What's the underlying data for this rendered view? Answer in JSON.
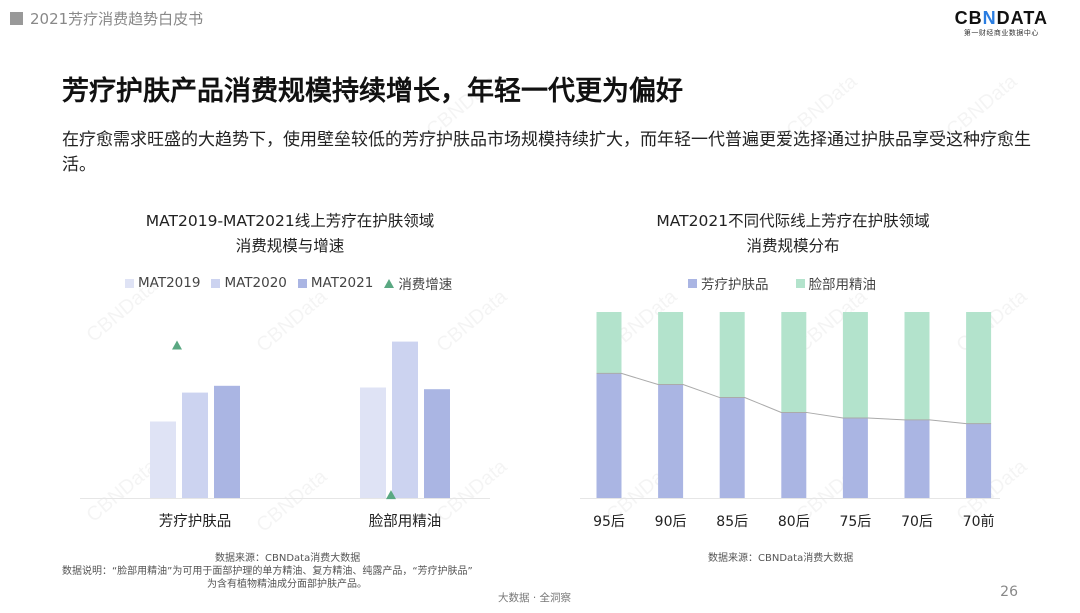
{
  "header": {
    "doc_title": "2021芳疗消费趋势白皮书"
  },
  "logo": {
    "text_pre": "CB",
    "text_x": "N",
    "text_post": "DATA",
    "tagline": "第一财经商业数据中心"
  },
  "main": {
    "title": "芳疗护肤产品消费规模持续增长，年轻一代更为偏好",
    "subtitle": "在疗愈需求旺盛的大趋势下，使用壁垒较低的芳疗护肤品市场规模持续扩大，而年轻一代普遍更爱选择通过护肤品享受这种疗愈生活。"
  },
  "left_chart": {
    "title_line1": "MAT2019-MAT2021线上芳疗在护肤领域",
    "title_line2": "消费规模与增速",
    "source": "数据来源：CBNData消费大数据",
    "note_line1": "数据说明：“脸部用精油”为可用于面部护理的单方精油、复方精油、纯露产品，“芳疗护肤品”",
    "note_line2": "为含有植物精油成分面部护肤产品。"
  },
  "right_chart": {
    "title_line1": "MAT2021不同代际线上芳疗在护肤领域",
    "title_line2": "消费规模分布",
    "source": "数据来源：CBNData消费大数据"
  },
  "footer": {
    "tagline": "大数据 · 全洞察",
    "page": "26"
  },
  "watermark": "CBNData",
  "colors": {
    "mat2019": "#dfe3f5",
    "mat2020": "#ccd3f0",
    "mat2021": "#aab5e3",
    "growth": "#5aa882",
    "skincare": "#aab5e3",
    "oil": "#b3e3cc",
    "line": "#aaaaaa"
  },
  "chart_data": [
    {
      "type": "bar",
      "categories": [
        "芳疗护肤品",
        "脸部用精油"
      ],
      "series": [
        {
          "name": "MAT2019",
          "values": [
            45,
            65
          ]
        },
        {
          "name": "MAT2020",
          "values": [
            62,
            92
          ]
        },
        {
          "name": "MAT2021",
          "values": [
            66,
            64
          ]
        }
      ],
      "growth_series": {
        "name": "消费增速",
        "marker": "triangle",
        "values": [
          90,
          2
        ]
      },
      "ylim": [
        0,
        100
      ],
      "axis_labels": "none",
      "legend": "top",
      "grid": false
    },
    {
      "type": "bar",
      "stacked": true,
      "percent": true,
      "categories": [
        "95后",
        "90后",
        "85后",
        "80后",
        "75后",
        "70后",
        "70前"
      ],
      "series": [
        {
          "name": "芳疗护肤品",
          "values": [
            67,
            61,
            54,
            46,
            43,
            42,
            40
          ]
        },
        {
          "name": "脸部用精油",
          "values": [
            33,
            39,
            46,
            54,
            57,
            58,
            60
          ]
        }
      ],
      "connector_line": true,
      "ylim": [
        0,
        100
      ],
      "legend": "top",
      "grid": false
    }
  ]
}
